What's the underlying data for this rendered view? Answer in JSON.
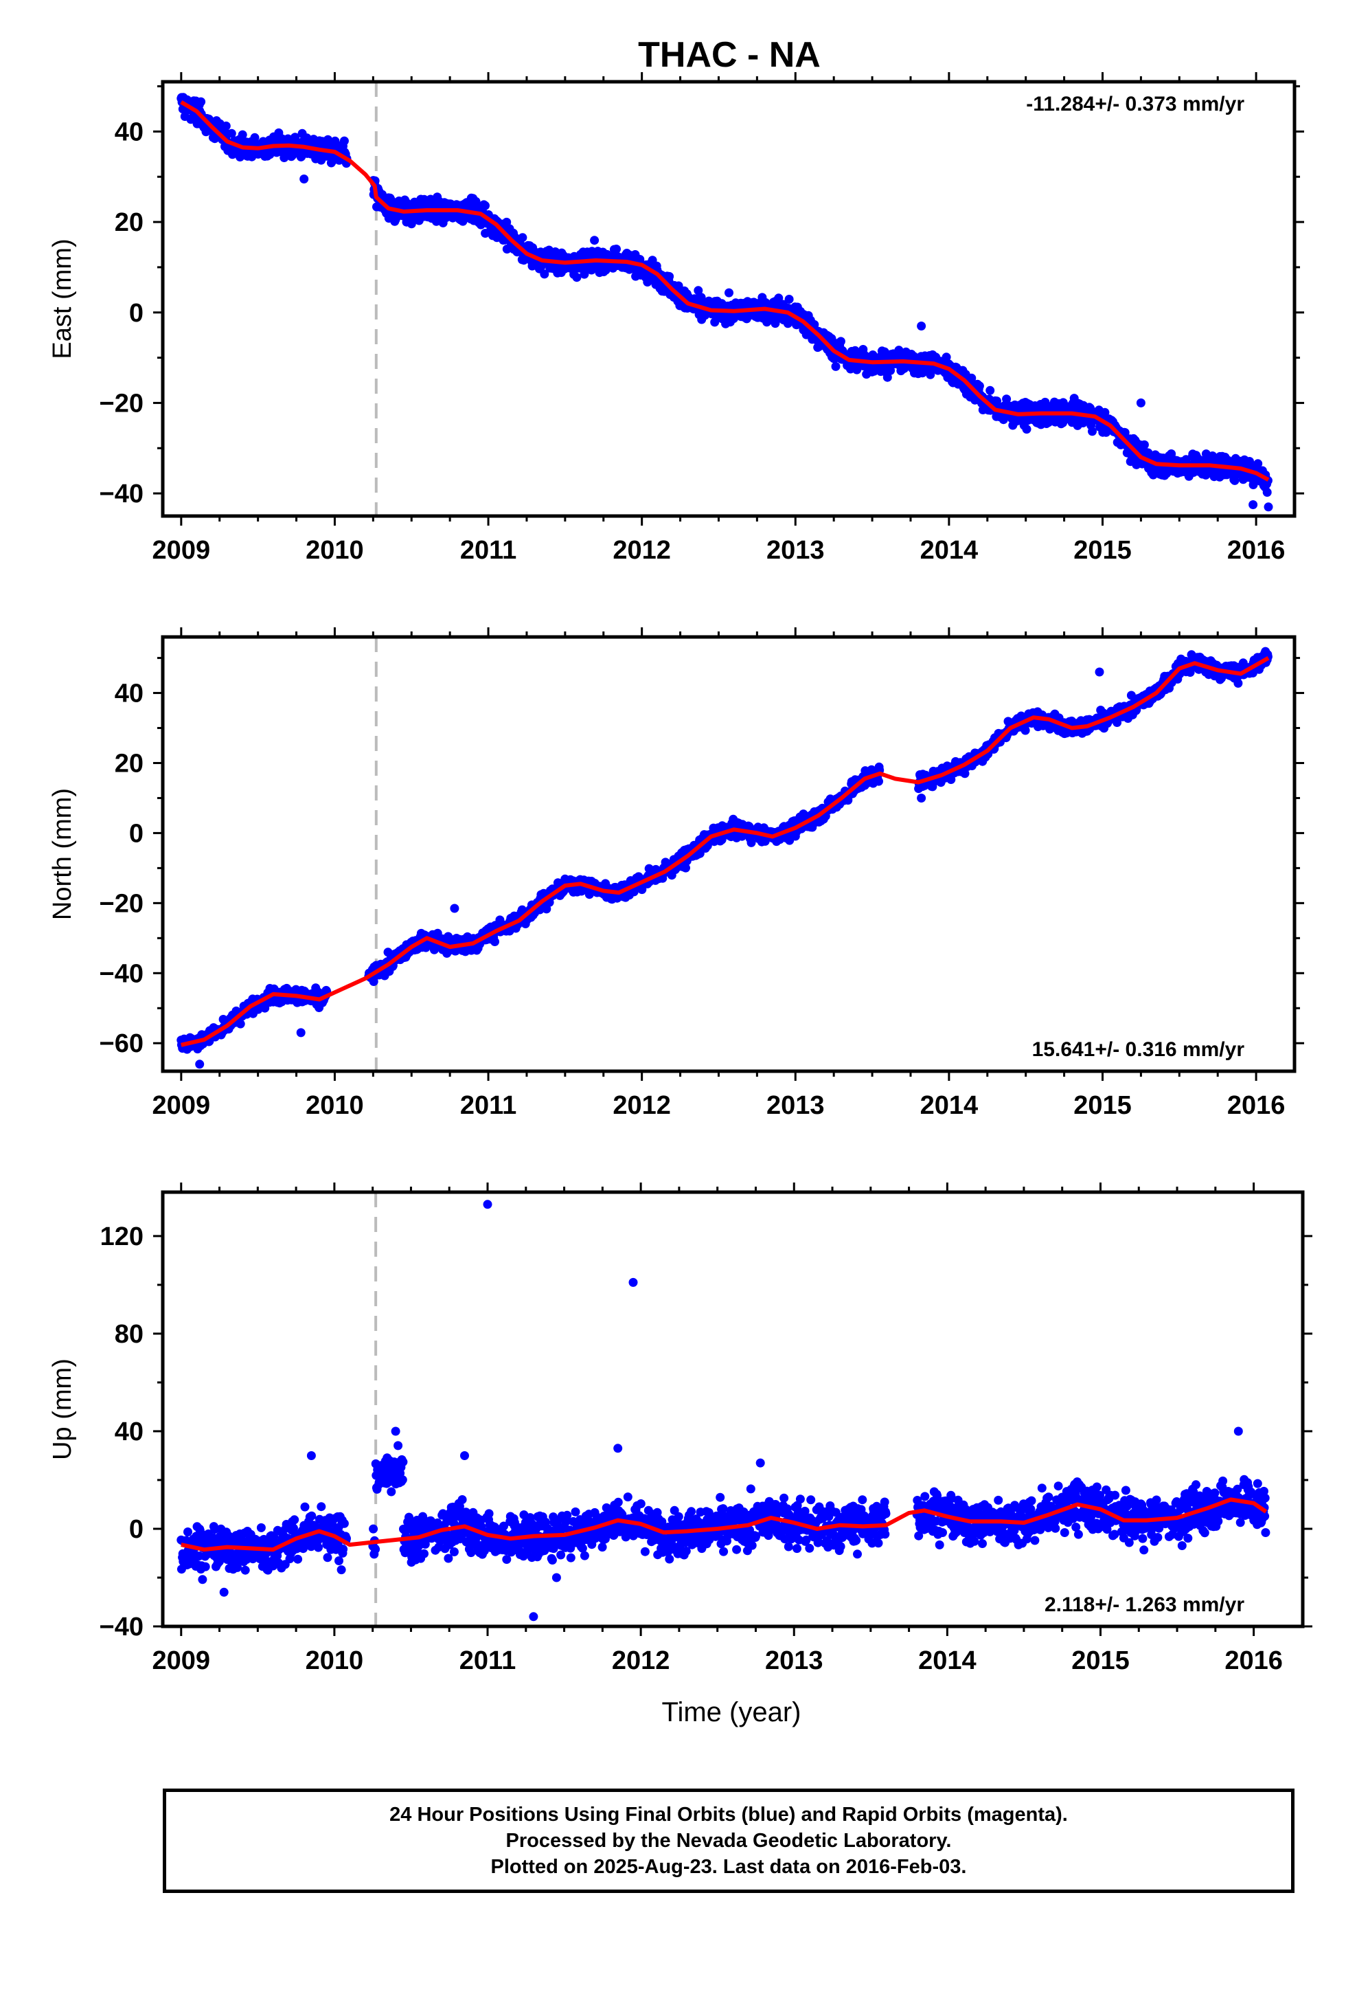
{
  "title": "THAC - NA",
  "footer": {
    "line1": "24 Hour Positions Using Final Orbits (blue) and Rapid Orbits (magenta).",
    "line2": "Processed by the Nevada Geodetic Laboratory.",
    "line3": "Plotted on 2025-Aug-23. Last data on 2016-Feb-03."
  },
  "colors": {
    "points": "#0000ff",
    "fit": "#ff0000",
    "break_line": "#bbbbbb",
    "frame": "#000000"
  },
  "chart_data": [
    {
      "type": "scatter",
      "ylabel": "East (mm)",
      "rate_label": "-11.284+/- 0.373 mm/yr",
      "rate_position": "top-right",
      "xlim": [
        2008.88,
        2016.25
      ],
      "ylim": [
        -45,
        51
      ],
      "xticks": [
        2009,
        2010,
        2011,
        2012,
        2013,
        2014,
        2015,
        2016
      ],
      "yticks": [
        -40,
        -20,
        0,
        20,
        40
      ],
      "break_year": 2010.27,
      "fit": {
        "x": [
          2009.0,
          2009.1,
          2009.2,
          2009.3,
          2009.4,
          2009.5,
          2009.6,
          2009.7,
          2009.8,
          2009.9,
          2010.0,
          2010.1,
          2010.2,
          2010.26,
          2010.27,
          2010.35,
          2010.45,
          2010.6,
          2010.8,
          2010.95,
          2011.05,
          2011.15,
          2011.25,
          2011.35,
          2011.5,
          2011.7,
          2011.9,
          2012.0,
          2012.1,
          2012.2,
          2012.3,
          2012.45,
          2012.6,
          2012.8,
          2012.95,
          2013.05,
          2013.15,
          2013.25,
          2013.35,
          2013.5,
          2013.7,
          2013.9,
          2014.0,
          2014.1,
          2014.2,
          2014.3,
          2014.45,
          2014.6,
          2014.8,
          2014.95,
          2015.05,
          2015.15,
          2015.25,
          2015.35,
          2015.5,
          2015.7,
          2015.9,
          2016.0,
          2016.08
        ],
        "y": [
          46.5,
          44.5,
          41.0,
          37.8,
          36.5,
          36.3,
          36.8,
          36.9,
          36.6,
          36.0,
          35.5,
          33.5,
          30.5,
          28.0,
          25.5,
          23.0,
          22.3,
          22.6,
          22.6,
          21.8,
          19.5,
          16.0,
          13.0,
          11.5,
          11.0,
          11.5,
          11.2,
          10.5,
          8.5,
          5.0,
          2.0,
          0.5,
          0.3,
          0.8,
          0.0,
          -2.0,
          -5.0,
          -8.5,
          -10.5,
          -11.0,
          -10.8,
          -11.3,
          -12.5,
          -15.0,
          -18.5,
          -21.5,
          -22.5,
          -22.3,
          -22.3,
          -23.0,
          -25.0,
          -28.5,
          -32.0,
          -33.5,
          -33.8,
          -33.8,
          -34.5,
          -35.5,
          -37.0
        ]
      },
      "gaps": [
        [
          2010.08,
          2010.25
        ]
      ],
      "outliers": [
        [
          2009.8,
          29.5
        ],
        [
          2010.98,
          17.5
        ],
        [
          2013.82,
          -3.0
        ],
        [
          2015.25,
          -20.0
        ],
        [
          2016.08,
          -43.0
        ],
        [
          2015.98,
          -42.5
        ]
      ],
      "noise": 1.8,
      "annual_amplitude": 0
    },
    {
      "type": "scatter",
      "ylabel": "North (mm)",
      "rate_label": "15.641+/- 0.316 mm/yr",
      "rate_position": "bottom-right",
      "xlim": [
        2008.88,
        2016.25
      ],
      "ylim": [
        -68,
        56
      ],
      "xticks": [
        2009,
        2010,
        2011,
        2012,
        2013,
        2014,
        2015,
        2016
      ],
      "yticks": [
        -60,
        -40,
        -20,
        0,
        20,
        40
      ],
      "break_year": 2010.27,
      "fit": {
        "x": [
          2009.0,
          2009.15,
          2009.3,
          2009.45,
          2009.6,
          2009.75,
          2009.9,
          2010.05,
          2010.2,
          2010.35,
          2010.5,
          2010.6,
          2010.75,
          2010.9,
          2011.05,
          2011.2,
          2011.35,
          2011.5,
          2011.6,
          2011.75,
          2011.85,
          2012.0,
          2012.15,
          2012.3,
          2012.45,
          2012.6,
          2012.75,
          2012.85,
          2013.0,
          2013.15,
          2013.3,
          2013.45,
          2013.55,
          2013.65,
          2013.8,
          2013.95,
          2014.1,
          2014.25,
          2014.4,
          2014.55,
          2014.65,
          2014.8,
          2014.9,
          2015.05,
          2015.2,
          2015.35,
          2015.5,
          2015.6,
          2015.75,
          2015.9,
          2016.08
        ],
        "y": [
          -60.5,
          -59.0,
          -55.0,
          -49.5,
          -46.0,
          -46.5,
          -47.5,
          -44.5,
          -41.5,
          -37.5,
          -32.5,
          -30.0,
          -32.5,
          -31.5,
          -28.0,
          -25.0,
          -19.5,
          -15.0,
          -14.5,
          -16.5,
          -17.0,
          -14.0,
          -11.0,
          -6.5,
          -1.0,
          1.0,
          0.0,
          -1.0,
          1.5,
          5.0,
          10.0,
          15.5,
          17.0,
          15.5,
          14.5,
          16.5,
          19.5,
          23.5,
          30.0,
          33.0,
          32.5,
          30.0,
          30.5,
          33.0,
          36.0,
          40.0,
          47.0,
          48.5,
          46.5,
          45.5,
          50.0
        ]
      },
      "gaps": [
        [
          2009.95,
          2010.22
        ],
        [
          2013.55,
          2013.8
        ]
      ],
      "outliers": [
        [
          2009.12,
          -66.0
        ],
        [
          2009.78,
          -57.0
        ],
        [
          2010.78,
          -21.5
        ],
        [
          2013.82,
          10.0
        ],
        [
          2014.98,
          46.0
        ]
      ],
      "noise": 1.6,
      "annual_amplitude": 0
    },
    {
      "type": "scatter",
      "ylabel": "Up (mm)",
      "xlabel": "Time (year)",
      "rate_label": "2.118+/- 1.263 mm/yr",
      "rate_position": "bottom-right",
      "xlim": [
        2008.88,
        2016.32
      ],
      "ylim": [
        -40,
        138
      ],
      "xticks": [
        2009,
        2010,
        2011,
        2012,
        2013,
        2014,
        2015,
        2016
      ],
      "yticks": [
        -40,
        0,
        40,
        80,
        120
      ],
      "break_year": 2010.27,
      "fit": {
        "x": [
          2009.0,
          2009.15,
          2009.3,
          2009.45,
          2009.6,
          2009.75,
          2009.9,
          2010.0,
          2010.1,
          2010.25,
          2010.4,
          2010.55,
          2010.7,
          2010.85,
          2011.0,
          2011.15,
          2011.3,
          2011.5,
          2011.7,
          2011.85,
          2012.0,
          2012.15,
          2012.3,
          2012.5,
          2012.7,
          2012.85,
          2013.0,
          2013.15,
          2013.3,
          2013.45,
          2013.6,
          2013.75,
          2013.85,
          2014.0,
          2014.15,
          2014.35,
          2014.5,
          2014.65,
          2014.85,
          2015.0,
          2015.15,
          2015.3,
          2015.5,
          2015.7,
          2015.85,
          2016.0,
          2016.08
        ],
        "y": [
          -6.5,
          -8.5,
          -7.5,
          -8.0,
          -8.5,
          -4.0,
          -1.0,
          -3.0,
          -6.5,
          -5.5,
          -4.5,
          -3.5,
          -0.5,
          1.0,
          -2.5,
          -4.0,
          -3.0,
          -2.5,
          0.5,
          3.5,
          2.0,
          -1.5,
          -1.0,
          0.0,
          1.5,
          4.5,
          2.5,
          0.0,
          1.5,
          1.0,
          1.5,
          6.5,
          7.5,
          5.0,
          3.0,
          3.0,
          2.5,
          5.5,
          10.0,
          8.0,
          3.5,
          3.5,
          4.5,
          8.5,
          12.0,
          10.5,
          7.0
        ]
      },
      "gaps": [
        [
          2010.08,
          2010.25
        ],
        [
          2013.6,
          2013.8
        ]
      ],
      "outliers": [
        [
          2011.0,
          133.0
        ],
        [
          2011.95,
          101.0
        ],
        [
          2011.85,
          33.0
        ],
        [
          2010.4,
          40.0
        ],
        [
          2009.28,
          -26.0
        ],
        [
          2011.3,
          -36.0
        ],
        [
          2011.45,
          -20.0
        ],
        [
          2012.78,
          27.0
        ],
        [
          2015.9,
          40.0
        ],
        [
          2009.85,
          30.0
        ],
        [
          2010.85,
          30.0
        ]
      ],
      "noise": 6.5,
      "annual_amplitude": 0
    }
  ]
}
